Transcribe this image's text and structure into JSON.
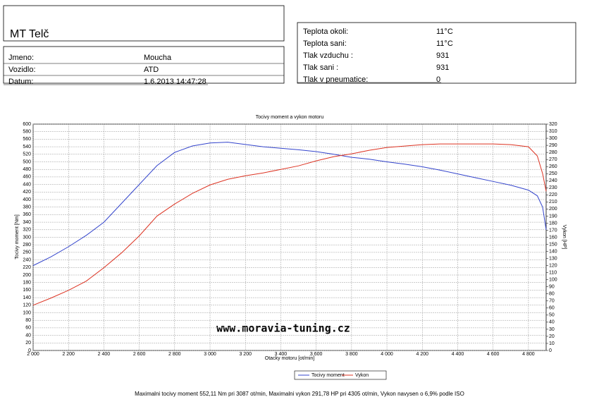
{
  "header": {
    "title": "MT Telč",
    "fields": [
      {
        "label": "Jmeno:",
        "value": "Moucha"
      },
      {
        "label": "Vozidlo:",
        "value": "ATD"
      },
      {
        "label": "Datum:",
        "value": "1.6.2013 14:47:28"
      }
    ]
  },
  "conditions": [
    {
      "label": "Teplota okoli:",
      "value": "11°C"
    },
    {
      "label": "Teplota sani:",
      "value": "11°C"
    },
    {
      "label": "Tlak vzduchu :",
      "value": "931"
    },
    {
      "label": "Tlak sani :",
      "value": "931"
    },
    {
      "label": "Tlak v pneumatice:",
      "value": "0"
    }
  ],
  "chart_data": {
    "type": "line",
    "title": "Tocivy moment a vykon motoru",
    "x_label": "Otacky motoru [ot/min]",
    "y_label": "Tocivy moment [Nm]",
    "y2_label": "Vykon [HP]",
    "watermark": "www.moravia-tuning.cz",
    "x": [
      2000,
      2100,
      2200,
      2300,
      2400,
      2500,
      2600,
      2700,
      2800,
      2900,
      3000,
      3100,
      3200,
      3300,
      3400,
      3500,
      3600,
      3700,
      3800,
      3900,
      4000,
      4100,
      4200,
      4300,
      4400,
      4500,
      4600,
      4700,
      4800,
      4850,
      4880,
      4900
    ],
    "series": [
      {
        "name": "Tocivy moment",
        "color": "#3344cc",
        "values": [
          225,
          248,
          275,
          305,
          340,
          390,
          440,
          490,
          525,
          542,
          550,
          552,
          546,
          540,
          536,
          532,
          527,
          520,
          512,
          507,
          500,
          494,
          487,
          478,
          468,
          458,
          448,
          438,
          425,
          410,
          380,
          320
        ]
      },
      {
        "name": "Vykon",
        "color": "#dd3322",
        "axis": "y2",
        "values": [
          64,
          74,
          85,
          98,
          117,
          138,
          162,
          190,
          207,
          222,
          234,
          242,
          247,
          251,
          256,
          261,
          268,
          274,
          278,
          283,
          287,
          289,
          291,
          292,
          292,
          292,
          292,
          291,
          288,
          275,
          250,
          225
        ]
      }
    ],
    "xlim": [
      2000,
      4900
    ],
    "ylim": [
      0,
      600
    ],
    "y2lim": [
      0,
      320
    ],
    "xticks": [
      {
        "value": 2000,
        "label": "2 000"
      },
      {
        "value": 2200,
        "label": "2 200"
      },
      {
        "value": 2400,
        "label": "2 400"
      },
      {
        "value": 2600,
        "label": "2 600"
      },
      {
        "value": 2800,
        "label": "2 800"
      },
      {
        "value": 3000,
        "label": "3 000"
      },
      {
        "value": 3200,
        "label": "3 200"
      },
      {
        "value": 3400,
        "label": "3 400"
      },
      {
        "value": 3600,
        "label": "3 600"
      },
      {
        "value": 3800,
        "label": "3 800"
      },
      {
        "value": 4000,
        "label": "4 000"
      },
      {
        "value": 4200,
        "label": "4 200"
      },
      {
        "value": 4400,
        "label": "4 400"
      },
      {
        "value": 4600,
        "label": "4 600"
      },
      {
        "value": 4800,
        "label": "4 800"
      }
    ],
    "yticks": [
      0,
      20,
      40,
      60,
      80,
      100,
      120,
      140,
      160,
      180,
      200,
      220,
      240,
      260,
      280,
      300,
      320,
      340,
      360,
      380,
      400,
      420,
      440,
      460,
      480,
      500,
      520,
      540,
      560,
      580,
      600
    ],
    "y2ticks": [
      0,
      10,
      20,
      30,
      40,
      50,
      60,
      70,
      80,
      90,
      100,
      110,
      120,
      130,
      140,
      150,
      160,
      170,
      180,
      190,
      200,
      210,
      220,
      230,
      240,
      250,
      260,
      270,
      280,
      290,
      300,
      310,
      320
    ],
    "grid": true
  },
  "footer": "Maximalni tocivy moment 552,11 Nm pri 3087 ot/min,  Maximalni vykon 291,78 HP pri 4305 ot/min,  Vykon navysen o 6,9% podle ISO"
}
